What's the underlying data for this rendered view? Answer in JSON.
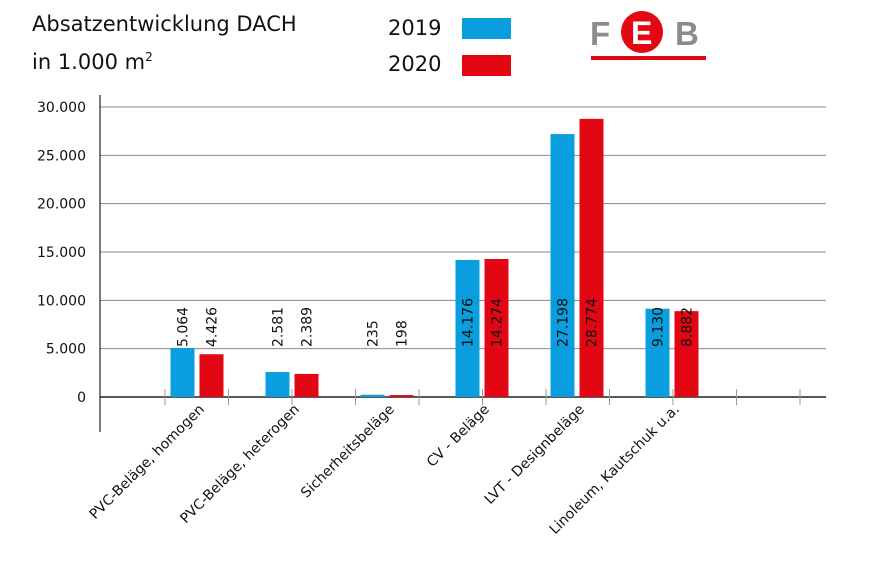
{
  "chart_data": {
    "type": "bar",
    "title": "Absatzentwicklung DACH",
    "subtitle": "in 1.000 m",
    "subtitle_sup": "2",
    "categories": [
      "PVC-Beläge, homogen",
      "PVC-Beläge, heterogen",
      "Sicherheitsbeläge",
      "CV - Beläge",
      "LVT - Designbeläge",
      "Linoleum, Kautschuk u.a."
    ],
    "series": [
      {
        "name": "2019",
        "color": "#0a9ede",
        "values": [
          5064,
          2581,
          235,
          14176,
          27198,
          9130
        ],
        "labels": [
          "5.064",
          "2.581",
          "235",
          "14.176",
          "27.198",
          "9.130"
        ]
      },
      {
        "name": "2020",
        "color": "#e30613",
        "values": [
          4426,
          2389,
          198,
          14274,
          28774,
          8882
        ],
        "labels": [
          "4.426",
          "2.389",
          "198",
          "14.274",
          "28.774",
          "8.882"
        ]
      }
    ],
    "yticks": [
      0,
      5000,
      10000,
      15000,
      20000,
      25000,
      30000
    ],
    "ytick_labels": [
      "0",
      "5.000",
      "10.000",
      "15.000",
      "20.000",
      "25.000",
      "30.000"
    ],
    "ylim": [
      0,
      30000
    ],
    "grid": true,
    "legend": "top"
  },
  "logo": {
    "text": "FEB",
    "colors": {
      "gray": "#8c8c8c",
      "red": "#e30613"
    }
  }
}
